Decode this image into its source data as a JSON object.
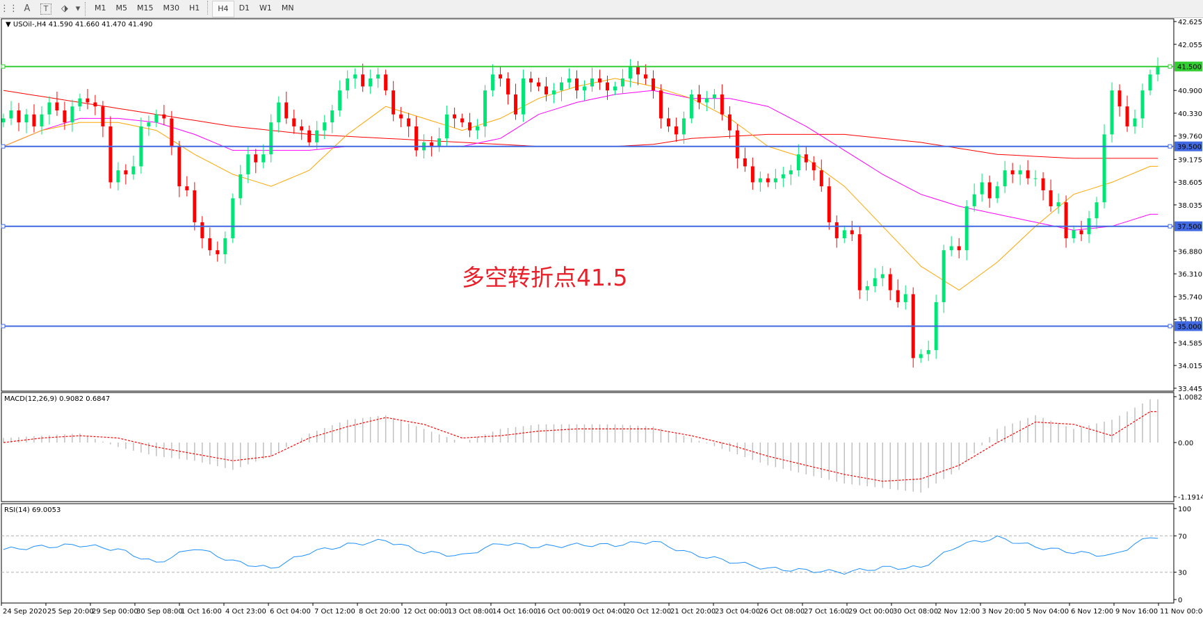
{
  "toolbar": {
    "tools": [
      {
        "icon": "grid-icon",
        "label": ""
      },
      {
        "icon": "text-icon",
        "label": "A"
      },
      {
        "icon": "text-label-icon",
        "label": "T"
      },
      {
        "icon": "arrows-icon",
        "label": "⬗"
      }
    ],
    "dropdown_icon": "▾",
    "timeframes": [
      "M1",
      "M5",
      "M15",
      "M30",
      "H1",
      "H4",
      "D1",
      "W1",
      "MN"
    ],
    "active_timeframe": "H4"
  },
  "chart": {
    "symbol_label": "▼ USOil-,H4  41.590 41.660 41.470 41.490",
    "annotation": "多空转折点41.5",
    "colors": {
      "bull": "#00e676",
      "bear": "#ff0000",
      "ma_fast": "#ffa500",
      "ma_mid": "#ff00ff",
      "ma_slow": "#ff0000",
      "level": "#4169e1",
      "pivot": "#32cd32",
      "macd_hist": "#c0c0c0",
      "macd_signal": "#ff0000",
      "rsi": "#1e90ff"
    }
  },
  "chart_data": {
    "type": "candlestick",
    "price_axis": {
      "ylim": [
        33.445,
        42.625
      ],
      "ticks": [
        "42.625",
        "42.055",
        "40.900",
        "40.330",
        "39.760",
        "39.175",
        "38.605",
        "38.035",
        "36.880",
        "36.310",
        "35.740",
        "35.170",
        "34.585",
        "34.015",
        "33.445"
      ]
    },
    "levels": [
      {
        "value": 41.5,
        "label": "41.500",
        "kind": "pivot"
      },
      {
        "value": 39.5,
        "label": "39.500",
        "kind": "level"
      },
      {
        "value": 37.5,
        "label": "37.500",
        "kind": "level"
      },
      {
        "value": 35.0,
        "label": "35.000",
        "kind": "level"
      }
    ],
    "closes": [
      40.2,
      40.4,
      40.1,
      40.3,
      40.0,
      40.3,
      40.6,
      40.4,
      40.1,
      40.5,
      40.7,
      40.6,
      40.5,
      40.0,
      38.6,
      38.9,
      38.8,
      39.0,
      40.0,
      40.1,
      40.3,
      40.2,
      39.5,
      38.5,
      38.4,
      37.6,
      37.2,
      36.9,
      36.8,
      37.2,
      38.2,
      38.8,
      39.3,
      39.1,
      39.3,
      40.1,
      40.6,
      40.2,
      40.0,
      39.9,
      39.6,
      39.9,
      40.1,
      40.4,
      40.9,
      41.2,
      41.3,
      41.0,
      41.2,
      41.3,
      40.9,
      40.3,
      40.2,
      40.0,
      39.4,
      39.6,
      39.5,
      39.7,
      40.3,
      40.2,
      40.1,
      39.9,
      40.0,
      40.9,
      41.3,
      41.2,
      40.8,
      40.3,
      41.2,
      41.1,
      41.0,
      40.8,
      40.9,
      41.1,
      41.2,
      40.9,
      41.0,
      41.2,
      41.1,
      40.9,
      41.0,
      41.2,
      41.5,
      41.3,
      41.2,
      40.9,
      40.2,
      40.0,
      39.8,
      40.2,
      40.8,
      40.6,
      40.7,
      40.8,
      40.3,
      39.9,
      39.2,
      39.0,
      38.6,
      38.7,
      38.6,
      38.7,
      38.8,
      38.9,
      39.3,
      39.1,
      38.9,
      38.5,
      37.6,
      37.2,
      37.4,
      37.3,
      35.9,
      36.0,
      36.2,
      36.3,
      35.9,
      35.6,
      35.8,
      34.2,
      34.3,
      34.4,
      35.6,
      36.9,
      37.0,
      36.9,
      38.0,
      38.3,
      38.6,
      38.2,
      38.5,
      38.9,
      38.8,
      38.9,
      38.7,
      38.7,
      38.4,
      38.0,
      38.1,
      37.2,
      37.4,
      37.3,
      37.7,
      38.1,
      39.8,
      40.9,
      40.5,
      40.0,
      40.2,
      40.9,
      41.3,
      41.49
    ],
    "ma_fast": [
      39.5,
      39.9,
      40.1,
      40.1,
      39.9,
      39.3,
      38.8,
      38.5,
      38.9,
      39.8,
      40.5,
      40.2,
      39.9,
      40.2,
      40.7,
      41.0,
      41.2,
      41.0,
      40.7,
      40.2,
      39.5,
      39.2,
      38.5,
      37.5,
      36.5,
      35.9,
      36.6,
      37.5,
      38.3,
      38.6,
      39.0
    ],
    "ma_mid": [
      39.5,
      39.9,
      40.2,
      40.2,
      40.1,
      39.8,
      39.4,
      39.4,
      39.4,
      39.5,
      39.5,
      39.5,
      39.5,
      39.7,
      40.3,
      40.6,
      40.8,
      40.9,
      40.7,
      40.7,
      40.5,
      40.0,
      39.4,
      38.8,
      38.3,
      38.0,
      37.8,
      37.6,
      37.4,
      37.5,
      37.8
    ],
    "ma_slow": [
      40.9,
      40.75,
      40.6,
      40.45,
      40.3,
      40.15,
      40.0,
      39.9,
      39.8,
      39.75,
      39.7,
      39.65,
      39.6,
      39.55,
      39.5,
      39.5,
      39.5,
      39.55,
      39.7,
      39.75,
      39.8,
      39.8,
      39.8,
      39.7,
      39.6,
      39.45,
      39.3,
      39.25,
      39.2,
      39.2,
      39.2
    ],
    "macd": {
      "label": "MACD(12,26,9) 0.9082 0.6847",
      "ylim": [
        -1.1914,
        1.0082
      ],
      "ticks": [
        "1.0082",
        "0.00",
        "-1.1914"
      ],
      "histogram": [
        0.1,
        0.15,
        0.2,
        -0.1,
        -0.3,
        -0.4,
        -0.6,
        -0.3,
        0.2,
        0.5,
        0.6,
        0.3,
        0.0,
        0.3,
        0.4,
        0.4,
        0.4,
        0.35,
        0.1,
        -0.2,
        -0.5,
        -0.7,
        -0.9,
        -1.0,
        -1.1,
        -0.6,
        0.3,
        0.6,
        0.3,
        0.5,
        0.95
      ],
      "signal": [
        0.0,
        0.1,
        0.15,
        0.1,
        -0.1,
        -0.25,
        -0.4,
        -0.3,
        0.1,
        0.35,
        0.55,
        0.4,
        0.1,
        0.15,
        0.25,
        0.3,
        0.3,
        0.3,
        0.15,
        -0.05,
        -0.3,
        -0.5,
        -0.7,
        -0.85,
        -0.8,
        -0.5,
        0.0,
        0.45,
        0.4,
        0.15,
        0.68
      ]
    },
    "rsi": {
      "label": "RSI(14) 69.0053",
      "ylim": [
        0,
        100
      ],
      "ticks": [
        "100",
        "70",
        "30",
        "0"
      ],
      "values": [
        55,
        58,
        60,
        55,
        40,
        57,
        42,
        34,
        52,
        60,
        65,
        52,
        48,
        62,
        58,
        60,
        60,
        64,
        50,
        42,
        34,
        32,
        30,
        35,
        35,
        60,
        68,
        58,
        52,
        48,
        69
      ]
    },
    "time_labels": [
      "24 Sep 2020",
      "25 Sep 20:00",
      "29 Sep 00:00",
      "30 Sep 08:00",
      "1 Oct 16:00",
      "4 Oct 23:00",
      "6 Oct 04:00",
      "7 Oct 12:00",
      "8 Oct 20:00",
      "12 Oct 00:00",
      "13 Oct 08:00",
      "14 Oct 16:00",
      "16 Oct 00:00",
      "19 Oct 04:00",
      "20 Oct 12:00",
      "21 Oct 20:00",
      "23 Oct 04:00",
      "26 Oct 08:00",
      "27 Oct 16:00",
      "29 Oct 00:00",
      "30 Oct 08:00",
      "2 Nov 12:00",
      "3 Nov 20:00",
      "5 Nov 04:00",
      "6 Nov 12:00",
      "9 Nov 16:00",
      "11 Nov 00:00"
    ]
  }
}
